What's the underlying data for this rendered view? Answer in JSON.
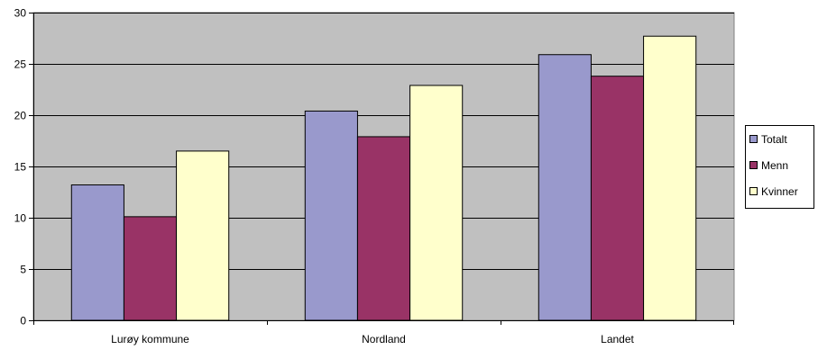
{
  "chart_data": {
    "type": "bar",
    "categories": [
      "Lurøy kommune",
      "Nordland",
      "Landet"
    ],
    "series": [
      {
        "name": "Totalt",
        "values": [
          13.2,
          20.4,
          25.9
        ],
        "color": "#9999CC"
      },
      {
        "name": "Menn",
        "values": [
          10.1,
          17.9,
          23.8
        ],
        "color": "#993366"
      },
      {
        "name": "Kvinner",
        "values": [
          16.5,
          22.9,
          27.7
        ],
        "color": "#FFFFCC"
      }
    ],
    "ylim": [
      0,
      30
    ],
    "yticks": [
      "0",
      "5",
      "10",
      "15",
      "20",
      "25",
      "30"
    ],
    "grid": true,
    "plot_background": "#C0C0C0",
    "legend_position": "right"
  }
}
